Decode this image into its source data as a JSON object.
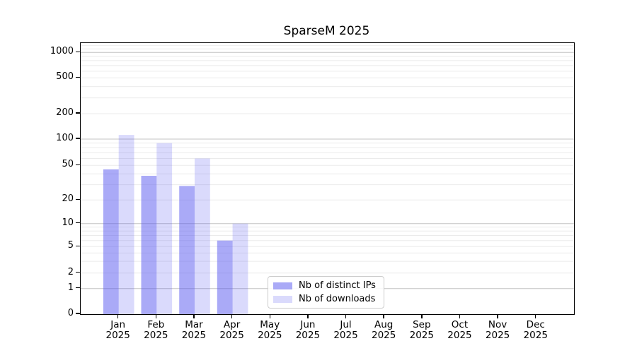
{
  "title": "SparseM 2025",
  "legend": {
    "items": [
      {
        "label": "Nb of distinct IPs",
        "swatch_color": "rgba(85,85,240,0.5)"
      },
      {
        "label": "Nb of downloads",
        "swatch_color": "rgba(85,85,240,0.22)"
      }
    ]
  },
  "colors": {
    "bar_base": "#5555f0",
    "dark_bar_rendered": "#aaaaf8",
    "light_bar_rendered": "#d9d9f9",
    "major_grid": "#c3c3c3",
    "minor_grid": "#ebebeb",
    "axis": "#000000"
  },
  "chart_data": {
    "type": "bar",
    "title": "SparseM 2025",
    "categories": [
      "Jan 2025",
      "Feb 2025",
      "Mar 2025",
      "Apr 2025",
      "May 2025",
      "Jun 2025",
      "Jul 2025",
      "Aug 2025",
      "Sep 2025",
      "Oct 2025",
      "Nov 2025",
      "Dec 2025"
    ],
    "series": [
      {
        "name": "Nb of distinct IPs",
        "opacity": 0.5,
        "values": [
          45,
          38,
          29,
          6,
          0,
          0,
          0,
          0,
          0,
          0,
          0,
          0
        ]
      },
      {
        "name": "Nb of downloads",
        "opacity": 0.22,
        "values": [
          112,
          90,
          60,
          10,
          0,
          0,
          0,
          0,
          0,
          0,
          0,
          0
        ]
      }
    ],
    "xlabel": "",
    "ylabel": "",
    "yscale": "log-like (asinh), 0 included",
    "yticks": [
      0,
      1,
      2,
      5,
      10,
      20,
      50,
      100,
      200,
      500,
      1000
    ],
    "ylim": [
      0,
      1280
    ],
    "grid": "horizontal, major at powers of 10 + faint minors",
    "legend_position": "lower center"
  }
}
